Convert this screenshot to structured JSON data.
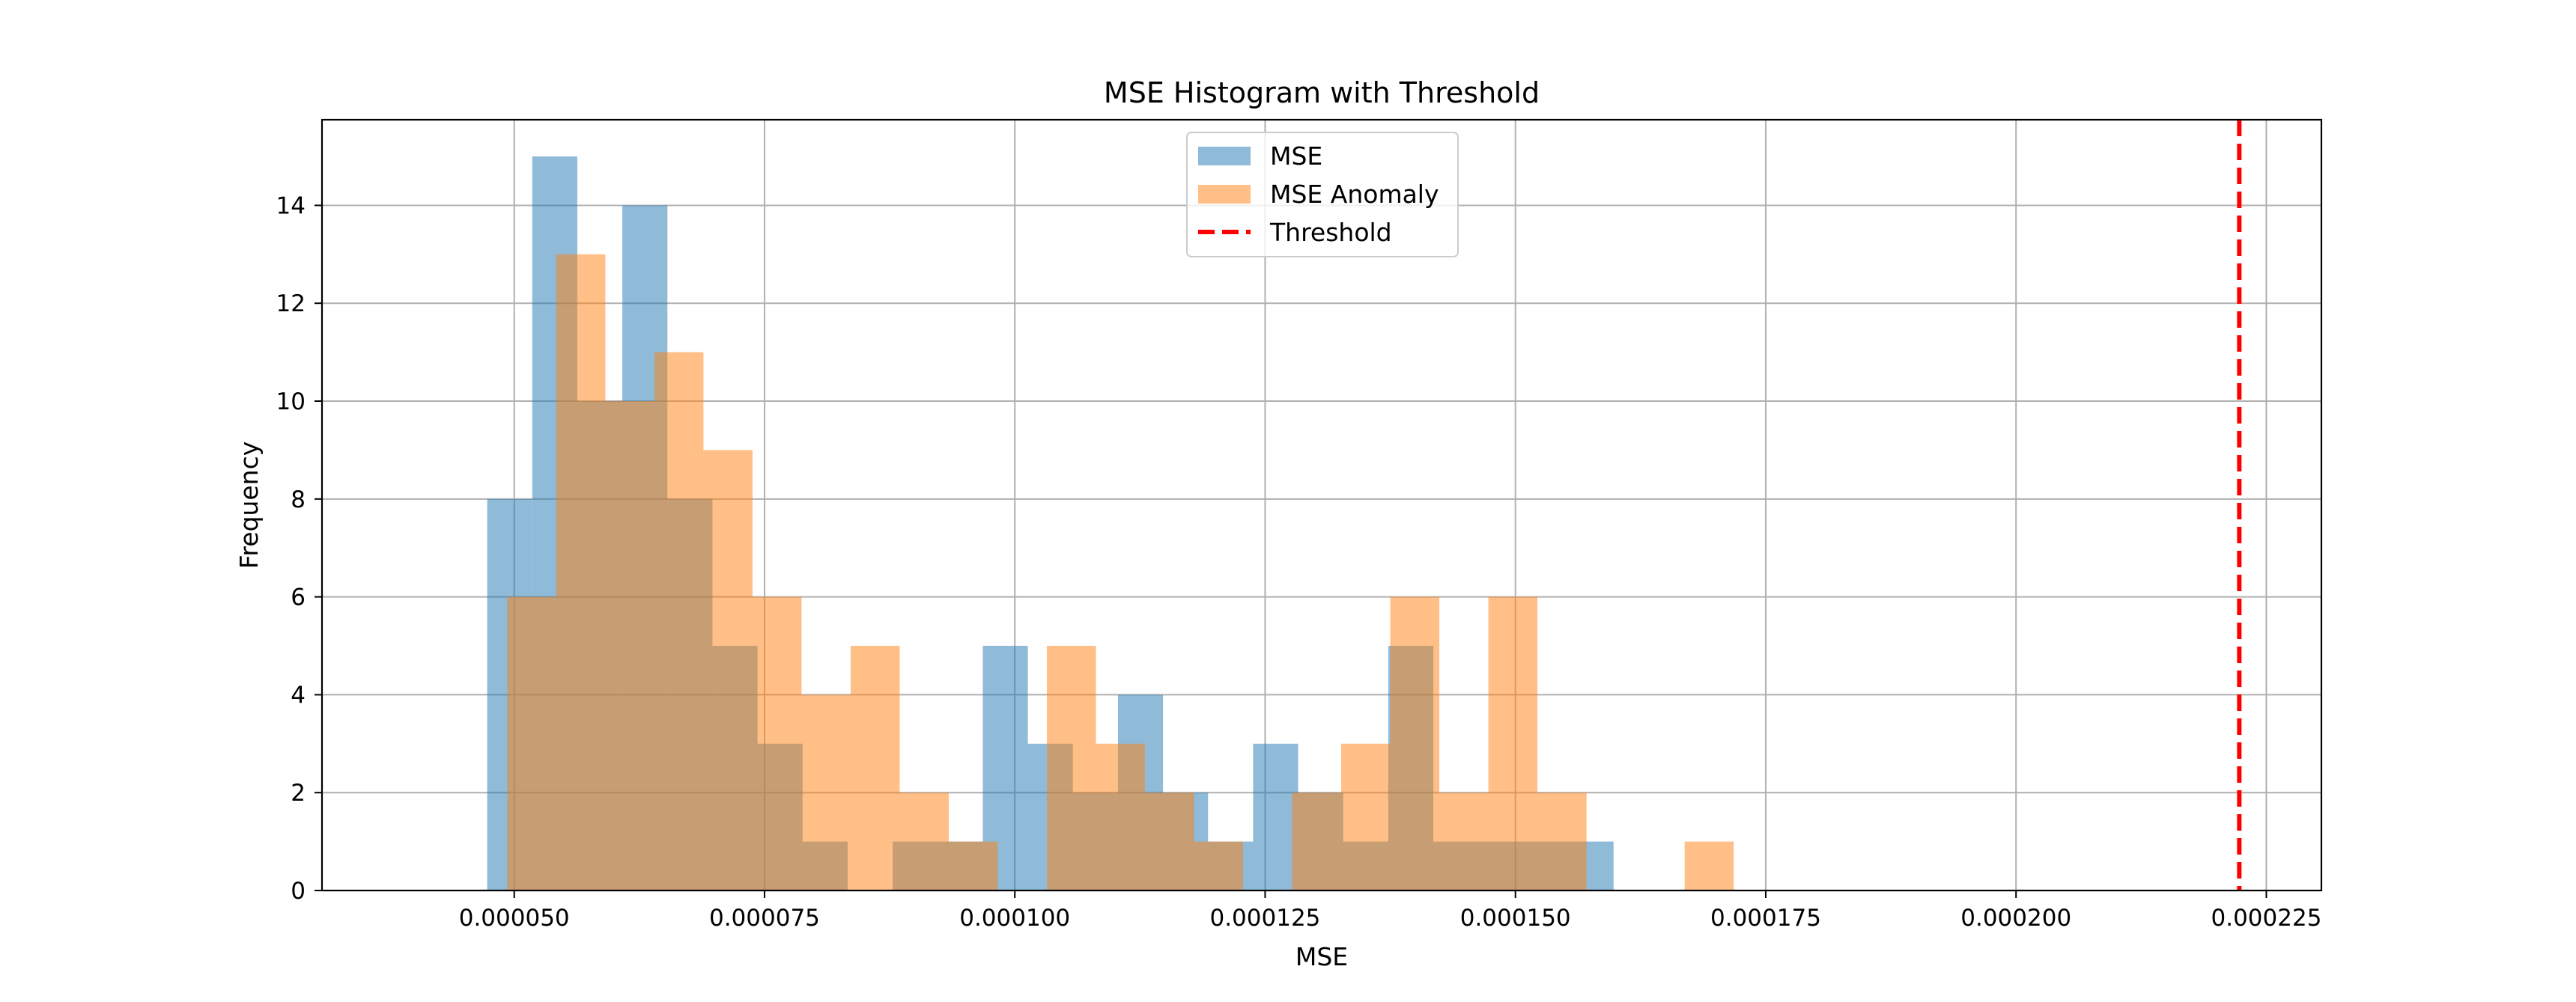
{
  "chart_data": {
    "type": "histogram",
    "title": "MSE Histogram with Threshold",
    "xlabel": "MSE",
    "ylabel": "Frequency",
    "xlim": [
      3.08e-05,
      0.0002305
    ],
    "ylim": [
      0,
      15.75
    ],
    "xticks": [
      {
        "value": 5e-05,
        "label": "0.000050"
      },
      {
        "value": 7.5e-05,
        "label": "0.000075"
      },
      {
        "value": 0.0001,
        "label": "0.000100"
      },
      {
        "value": 0.000125,
        "label": "0.000125"
      },
      {
        "value": 0.00015,
        "label": "0.000150"
      },
      {
        "value": 0.000175,
        "label": "0.000175"
      },
      {
        "value": 0.0002,
        "label": "0.000200"
      },
      {
        "value": 0.000225,
        "label": "0.000225"
      }
    ],
    "yticks": [
      {
        "value": 0,
        "label": "0"
      },
      {
        "value": 2,
        "label": "2"
      },
      {
        "value": 4,
        "label": "4"
      },
      {
        "value": 6,
        "label": "6"
      },
      {
        "value": 8,
        "label": "8"
      },
      {
        "value": 10,
        "label": "10"
      },
      {
        "value": 12,
        "label": "12"
      },
      {
        "value": 14,
        "label": "14"
      }
    ],
    "grid": true,
    "legend_position": "upper center",
    "series": [
      {
        "name": "MSE",
        "color": "#1f77b4",
        "alpha": 0.5,
        "bin_edges": [
          4.73e-05,
          5.18e-05,
          5.63e-05,
          6.08e-05,
          6.53e-05,
          6.98e-05,
          7.43e-05,
          7.88e-05,
          8.33e-05,
          8.78e-05,
          9.23e-05,
          9.68e-05,
          0.0001013,
          0.0001058,
          0.0001103,
          0.0001148,
          0.0001193,
          0.0001238,
          0.0001283,
          0.0001328,
          0.0001373,
          0.0001418,
          0.0001463,
          0.0001508,
          0.0001553,
          0.0001598
        ],
        "counts": [
          8,
          15,
          10,
          14,
          8,
          5,
          3,
          1,
          0,
          1,
          1,
          5,
          3,
          2,
          4,
          2,
          1,
          3,
          2,
          1,
          5,
          1,
          1,
          1,
          1
        ]
      },
      {
        "name": "MSE Anomaly",
        "color": "#ff7f0e",
        "alpha": 0.5,
        "bin_edges": [
          4.93e-05,
          5.42e-05,
          5.91e-05,
          6.4e-05,
          6.89e-05,
          7.38e-05,
          7.87e-05,
          8.36e-05,
          8.85e-05,
          9.34e-05,
          9.83e-05,
          0.0001032,
          0.0001081,
          0.000113,
          0.0001179,
          0.0001228,
          0.0001277,
          0.0001326,
          0.0001375,
          0.0001424,
          0.0001473,
          0.0001522,
          0.0001571,
          0.000162,
          0.0001669,
          0.0001718
        ],
        "counts": [
          6,
          13,
          10,
          11,
          9,
          6,
          4,
          5,
          2,
          1,
          0,
          5,
          3,
          2,
          1,
          0,
          2,
          3,
          6,
          2,
          6,
          2,
          0,
          0,
          1
        ]
      }
    ],
    "threshold": {
      "name": "Threshold",
      "value": 0.0002223,
      "color": "#ff0000",
      "style": "dashed"
    }
  }
}
